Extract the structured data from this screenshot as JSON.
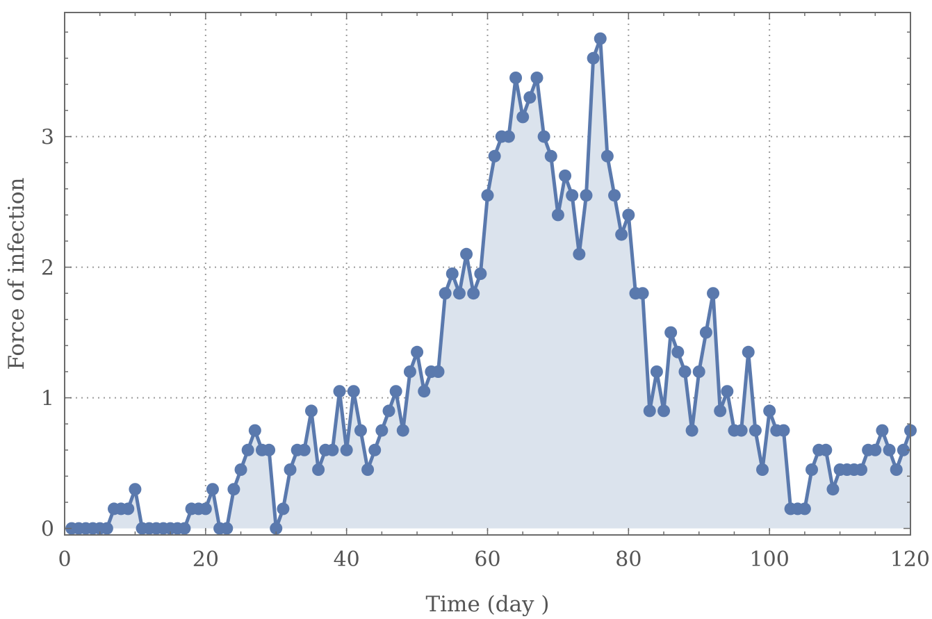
{
  "chart_data": {
    "type": "line",
    "title": "",
    "xlabel": "Time (day )",
    "ylabel": "Force of infection",
    "xlim": [
      0,
      120
    ],
    "ylim": [
      -0.05,
      3.95
    ],
    "x_ticks": [
      0,
      20,
      40,
      60,
      80,
      100,
      120
    ],
    "y_ticks": [
      0,
      1,
      2,
      3
    ],
    "x_tick_labels": [
      "0",
      "20",
      "40",
      "60",
      "80",
      "100",
      "120"
    ],
    "y_tick_labels": [
      "0",
      "1",
      "2",
      "3"
    ],
    "grid": true,
    "filled": true,
    "legend": "none",
    "colors": {
      "line": "#5a79ad",
      "fill": "#dbe3ed"
    },
    "series": [
      {
        "x": [
          1,
          2,
          3,
          4,
          5,
          6,
          7,
          8,
          9,
          10,
          11,
          12,
          13,
          14,
          15,
          16,
          17,
          18,
          19,
          20,
          21,
          22,
          23,
          24,
          25,
          26,
          27,
          28,
          29,
          30,
          31,
          32,
          33,
          34,
          35,
          36,
          37,
          38,
          39,
          40,
          41,
          42,
          43,
          44,
          45,
          46,
          47,
          48,
          49,
          50,
          51,
          52,
          53,
          54,
          55,
          56,
          57,
          58,
          59,
          60,
          61,
          62,
          63,
          64,
          65,
          66,
          67,
          68,
          69,
          70,
          71,
          72,
          73,
          74,
          75,
          76,
          77,
          78,
          79,
          80,
          81,
          82,
          83,
          84,
          85,
          86,
          87,
          88,
          89,
          90,
          91,
          92,
          93,
          94,
          95,
          96,
          97,
          98,
          99,
          100,
          101,
          102,
          103,
          104,
          105,
          106,
          107,
          108,
          109,
          110,
          111,
          112,
          113,
          114,
          115,
          116,
          117,
          118,
          119,
          120
        ],
        "y": [
          0,
          0,
          0,
          0,
          0,
          0,
          0.15,
          0.15,
          0.15,
          0.3,
          0,
          0,
          0,
          0,
          0,
          0,
          0,
          0.15,
          0.15,
          0.15,
          0.3,
          0,
          0,
          0.3,
          0.45,
          0.6,
          0.75,
          0.6,
          0.6,
          0,
          0.15,
          0.45,
          0.6,
          0.6,
          0.9,
          0.45,
          0.6,
          0.6,
          1.05,
          0.6,
          1.05,
          0.75,
          0.45,
          0.6,
          0.75,
          0.9,
          1.05,
          0.75,
          1.2,
          1.35,
          1.05,
          1.2,
          1.2,
          1.8,
          1.95,
          1.8,
          2.1,
          1.8,
          1.95,
          2.55,
          2.85,
          3.0,
          3.0,
          3.45,
          3.15,
          3.3,
          3.45,
          3.0,
          2.85,
          2.4,
          2.7,
          2.55,
          2.1,
          2.55,
          3.6,
          3.75,
          2.85,
          2.55,
          2.25,
          2.4,
          1.8,
          1.8,
          0.9,
          1.2,
          0.9,
          1.5,
          1.35,
          1.2,
          0.75,
          1.2,
          1.5,
          1.8,
          0.9,
          1.05,
          0.75,
          0.75,
          1.35,
          0.75,
          0.45,
          0.9,
          0.75,
          0.75,
          0.15,
          0.15,
          0.15,
          0.45,
          0.6,
          0.6,
          0.3,
          0.45,
          0.45,
          0.45,
          0.45,
          0.6,
          0.6,
          0.75,
          0.6,
          0.45,
          0.6,
          0.75
        ]
      }
    ]
  }
}
